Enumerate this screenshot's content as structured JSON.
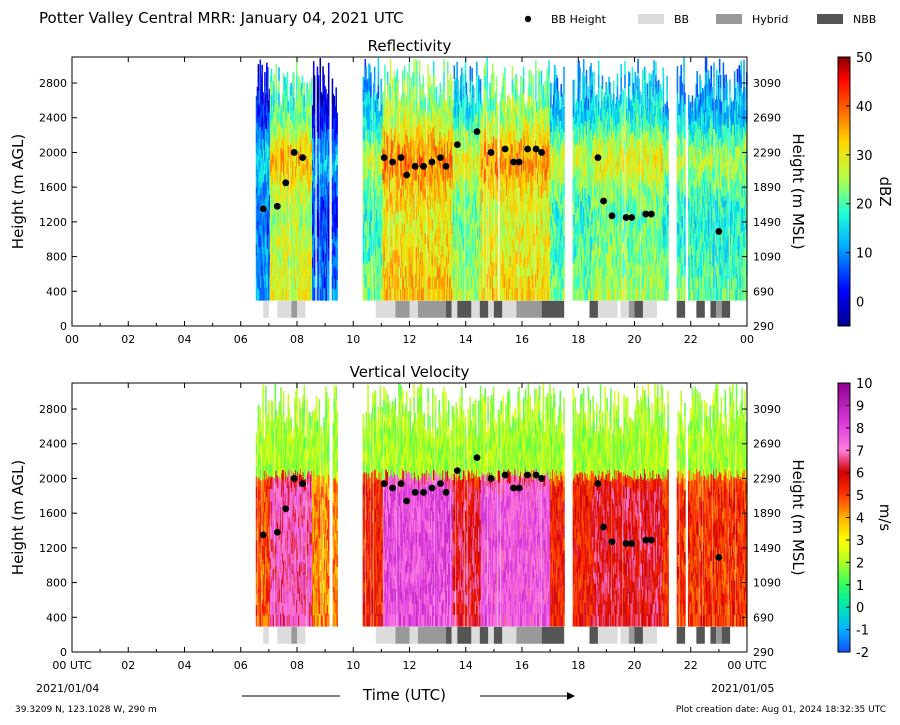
{
  "figure": {
    "title": "Potter Valley Central MRR:  January 04, 2021 UTC",
    "legend": [
      {
        "label": "BB Height",
        "kind": "dot",
        "color": "#000000"
      },
      {
        "label": "BB",
        "kind": "bar",
        "color": "#dcdcdc"
      },
      {
        "label": "Hybrid",
        "kind": "bar",
        "color": "#999999"
      },
      {
        "label": "NBB",
        "kind": "bar",
        "color": "#555555"
      }
    ],
    "xlabel": "Time (UTC)",
    "start_date": "2021/01/04",
    "end_date": "2021/01/05",
    "location": "39.3209 N, 123.1028 W, 290 m",
    "creation": "Plot creation date: Aug 01, 2024 18:32:35 UTC"
  },
  "chart_data": [
    {
      "type": "heatmap",
      "title": "Reflectivity",
      "ylabel": "Height (m AGL)",
      "ylabel_right": "Height (m MSL)",
      "colorbar_label": "dBZ",
      "colorbar_range": [
        -5,
        50
      ],
      "colorbar_ticks": [
        0,
        10,
        20,
        30,
        40,
        50
      ],
      "ylim": [
        0,
        3100
      ],
      "yticks": [
        0,
        400,
        800,
        1200,
        1600,
        2000,
        2400,
        2800
      ],
      "yticks_right": [
        "290",
        "690",
        "1090",
        "1490",
        "1890",
        "2290",
        "2690",
        "3090"
      ],
      "xticks": [
        "00",
        "02",
        "04",
        "06",
        "08",
        "10",
        "12",
        "14",
        "16",
        "18",
        "20",
        "22",
        "00"
      ]
    },
    {
      "type": "heatmap",
      "title": "Vertical Velocity",
      "ylabel": "Height (m AGL)",
      "ylabel_right": "Height (m MSL)",
      "colorbar_label": "m/s",
      "colorbar_range": [
        -2,
        10
      ],
      "colorbar_ticks": [
        -2,
        -1,
        0,
        1,
        2,
        3,
        4,
        5,
        6,
        7,
        8,
        9,
        10
      ],
      "ylim": [
        0,
        3100
      ],
      "yticks": [
        0,
        400,
        800,
        1200,
        1600,
        2000,
        2400,
        2800
      ],
      "yticks_right": [
        "290",
        "690",
        "1090",
        "1490",
        "1890",
        "2290",
        "2690",
        "3090"
      ],
      "xticks": [
        "00 UTC",
        "02",
        "04",
        "06",
        "08",
        "10",
        "12",
        "14",
        "16",
        "18",
        "20",
        "22",
        "00 UTC"
      ]
    }
  ],
  "bb_height": {
    "time": [
      6.8,
      7.3,
      7.6,
      7.9,
      8.2,
      11.1,
      11.4,
      11.7,
      11.9,
      12.2,
      12.5,
      12.8,
      13.1,
      13.3,
      13.7,
      14.4,
      14.9,
      15.4,
      15.7,
      15.9,
      16.2,
      16.5,
      16.7,
      18.7,
      18.9,
      19.2,
      19.7,
      19.9,
      20.4,
      20.6,
      23.0
    ],
    "height": [
      1350,
      1380,
      1650,
      2000,
      1940,
      1940,
      1890,
      1940,
      1740,
      1840,
      1840,
      1890,
      1940,
      1840,
      2090,
      2240,
      2000,
      2040,
      1890,
      1890,
      2040,
      2040,
      2000,
      1940,
      1440,
      1270,
      1250,
      1250,
      1290,
      1290,
      1090
    ]
  },
  "bb_classification": [
    {
      "start": 6.8,
      "end": 7.0,
      "type": "BB"
    },
    {
      "start": 7.3,
      "end": 7.8,
      "type": "BB"
    },
    {
      "start": 7.8,
      "end": 8.0,
      "type": "Hybrid"
    },
    {
      "start": 8.0,
      "end": 8.3,
      "type": "BB"
    },
    {
      "start": 10.8,
      "end": 11.5,
      "type": "BB"
    },
    {
      "start": 11.5,
      "end": 12.0,
      "type": "Hybrid"
    },
    {
      "start": 12.0,
      "end": 12.3,
      "type": "BB"
    },
    {
      "start": 12.3,
      "end": 13.3,
      "type": "Hybrid"
    },
    {
      "start": 13.3,
      "end": 13.5,
      "type": "NBB"
    },
    {
      "start": 13.5,
      "end": 13.7,
      "type": "BB"
    },
    {
      "start": 13.7,
      "end": 14.2,
      "type": "NBB"
    },
    {
      "start": 14.2,
      "end": 14.5,
      "type": "BB"
    },
    {
      "start": 14.5,
      "end": 14.8,
      "type": "NBB"
    },
    {
      "start": 14.8,
      "end": 15.0,
      "type": "BB"
    },
    {
      "start": 15.0,
      "end": 15.3,
      "type": "NBB"
    },
    {
      "start": 15.3,
      "end": 15.8,
      "type": "BB"
    },
    {
      "start": 15.8,
      "end": 16.7,
      "type": "Hybrid"
    },
    {
      "start": 16.7,
      "end": 17.5,
      "type": "NBB"
    },
    {
      "start": 18.4,
      "end": 18.7,
      "type": "NBB"
    },
    {
      "start": 18.7,
      "end": 19.4,
      "type": "BB"
    },
    {
      "start": 19.5,
      "end": 19.8,
      "type": "BB"
    },
    {
      "start": 19.8,
      "end": 20.0,
      "type": "Hybrid"
    },
    {
      "start": 20.0,
      "end": 20.3,
      "type": "NBB"
    },
    {
      "start": 20.3,
      "end": 20.8,
      "type": "BB"
    },
    {
      "start": 21.5,
      "end": 21.8,
      "type": "NBB"
    },
    {
      "start": 22.2,
      "end": 22.5,
      "type": "NBB"
    },
    {
      "start": 22.7,
      "end": 22.9,
      "type": "NBB"
    },
    {
      "start": 22.9,
      "end": 23.1,
      "type": "Hybrid"
    },
    {
      "start": 23.1,
      "end": 23.4,
      "type": "NBB"
    }
  ],
  "echo_periods": [
    {
      "start": 6.5,
      "end": 9.1
    },
    {
      "start": 9.2,
      "end": 9.4
    },
    {
      "start": 10.3,
      "end": 17.5
    },
    {
      "start": 17.8,
      "end": 21.2
    },
    {
      "start": 21.5,
      "end": 21.8
    },
    {
      "start": 21.9,
      "end": 24.0
    }
  ]
}
